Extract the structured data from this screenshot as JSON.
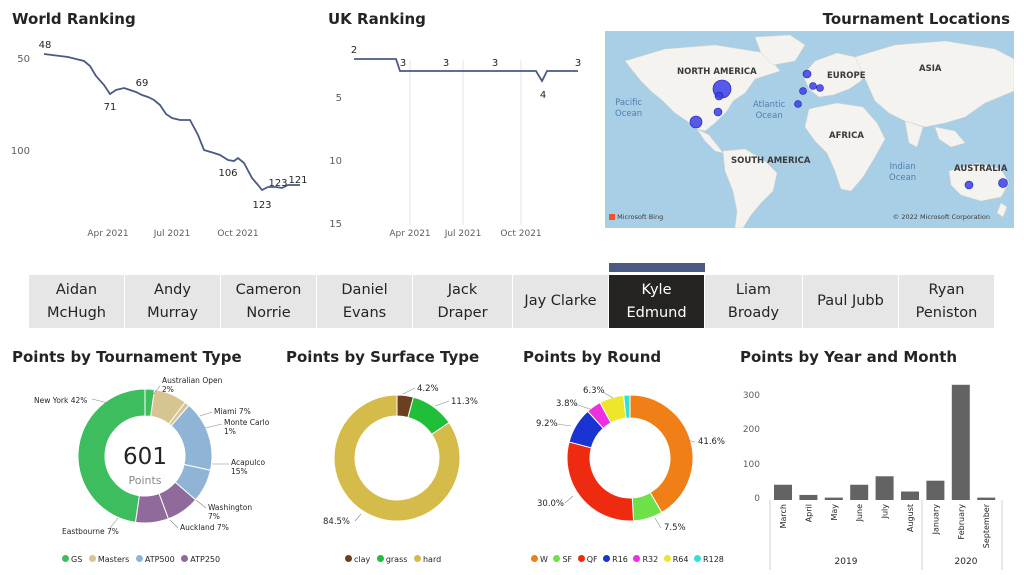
{
  "world_ranking": {
    "title": "World Ranking",
    "y_ticks": [
      "50",
      "100"
    ],
    "x_ticks": [
      "Apr 2021",
      "Jul 2021",
      "Oct 2021"
    ],
    "labels": [
      "48",
      "71",
      "69",
      "106",
      "123",
      "123",
      "121"
    ]
  },
  "uk_ranking": {
    "title": "UK Ranking",
    "y_ticks": [
      "5",
      "10",
      "15"
    ],
    "x_ticks": [
      "Apr 2021",
      "Jul 2021",
      "Oct 2021"
    ],
    "labels": [
      "2",
      "3",
      "3",
      "3",
      "4",
      "3"
    ]
  },
  "map": {
    "title": "Tournament Locations",
    "continents": [
      "NORTH AMERICA",
      "EUROPE",
      "ASIA",
      "AFRICA",
      "SOUTH AMERICA",
      "AUSTRALIA"
    ],
    "oceans": [
      "Pacific\nOcean",
      "Atlantic\nOcean",
      "Indian\nOcean"
    ],
    "bing": "Microsoft Bing",
    "copyright": "© 2022 Microsoft Corporation"
  },
  "players": {
    "items": [
      {
        "line1": "Aidan",
        "line2": "McHugh"
      },
      {
        "line1": "Andy",
        "line2": "Murray"
      },
      {
        "line1": "Cameron",
        "line2": "Norrie"
      },
      {
        "line1": "Daniel",
        "line2": "Evans"
      },
      {
        "line1": "Jack",
        "line2": "Draper"
      },
      {
        "line1": "Jay Clarke",
        "line2": ""
      },
      {
        "line1": "Kyle",
        "line2": "Edmund"
      },
      {
        "line1": "Liam",
        "line2": "Broady"
      },
      {
        "line1": "Paul Jubb",
        "line2": ""
      },
      {
        "line1": "Ryan",
        "line2": "Peniston"
      }
    ],
    "selected_index": 6
  },
  "tournament_type": {
    "title": "Points by Tournament Type",
    "center_value": "601",
    "center_label": "Points",
    "slice_labels": [
      {
        "name": "New York 42%"
      },
      {
        "name": "Australian Open",
        "value": "2%"
      },
      {
        "name": "Miami 7%"
      },
      {
        "name": "Monte Carlo",
        "value": "1%"
      },
      {
        "name": "Acapulco",
        "value": "15%"
      },
      {
        "name": "Washington",
        "value": "7%"
      },
      {
        "name": "Auckland 7%"
      },
      {
        "name": "Eastbourne 7%"
      }
    ],
    "legend": [
      {
        "label": "GS",
        "color": "#3ebd5f"
      },
      {
        "label": "Masters",
        "color": "#d6c491"
      },
      {
        "label": "ATP500",
        "color": "#90b4d6"
      },
      {
        "label": "ATP250",
        "color": "#8f6a9a"
      }
    ]
  },
  "surface_type": {
    "title": "Points by Surface Type",
    "labels": [
      "4.2%",
      "11.3%",
      "84.5%"
    ],
    "legend": [
      {
        "label": "clay",
        "color": "#6b3f1f"
      },
      {
        "label": "grass",
        "color": "#1fbf3a"
      },
      {
        "label": "hard",
        "color": "#d4bb4a"
      }
    ]
  },
  "round": {
    "title": "Points by Round",
    "labels": [
      "6.3%",
      "3.8%",
      "9.2%",
      "41.6%",
      "30.0%",
      "7.5%"
    ],
    "legend": [
      {
        "label": "W",
        "color": "#f07f17"
      },
      {
        "label": "SF",
        "color": "#6ee04a"
      },
      {
        "label": "QF",
        "color": "#ee2a10"
      },
      {
        "label": "R16",
        "color": "#1a34d4"
      },
      {
        "label": "R32",
        "color": "#ee2fe0"
      },
      {
        "label": "R64",
        "color": "#eee62a"
      },
      {
        "label": "R128",
        "color": "#2ee2d8"
      }
    ]
  },
  "year_month": {
    "title": "Points by Year and Month",
    "y_ticks": [
      "0",
      "100",
      "200",
      "300"
    ],
    "years": [
      "2019",
      "2020"
    ]
  },
  "chart_data": [
    {
      "type": "line",
      "title": "World Ranking",
      "x_ticks": [
        "Apr 2021",
        "Jul 2021",
        "Oct 2021"
      ],
      "y_ticks": [
        50,
        100
      ],
      "y_reversed": true,
      "grid": false,
      "point_labels": [
        48,
        71,
        69,
        106,
        123,
        123,
        121
      ]
    },
    {
      "type": "line",
      "title": "UK Ranking",
      "x_ticks": [
        "Apr 2021",
        "Jul 2021",
        "Oct 2021"
      ],
      "ylim": [
        15,
        1
      ],
      "y_reversed": true,
      "grid": true,
      "point_labels": [
        2,
        3,
        3,
        3,
        4,
        3
      ]
    },
    {
      "type": "pie",
      "title": "Points by Tournament Type",
      "total": 601,
      "slices": [
        {
          "label": "Australian Open",
          "group": "GS",
          "value": 2
        },
        {
          "label": "Miami",
          "group": "Masters",
          "value": 7
        },
        {
          "label": "Monte Carlo",
          "group": "Masters",
          "value": 1
        },
        {
          "label": "Acapulco",
          "group": "ATP500",
          "value": 15
        },
        {
          "label": "Washington",
          "group": "ATP500",
          "value": 7
        },
        {
          "label": "Auckland",
          "group": "ATP250",
          "value": 7
        },
        {
          "label": "Eastbourne",
          "group": "ATP250",
          "value": 7
        },
        {
          "label": "New York",
          "group": "GS",
          "value": 42
        }
      ]
    },
    {
      "type": "pie",
      "title": "Points by Surface Type",
      "slices": [
        {
          "label": "clay",
          "value": 4.2
        },
        {
          "label": "grass",
          "value": 11.3
        },
        {
          "label": "hard",
          "value": 84.5
        }
      ]
    },
    {
      "type": "pie",
      "title": "Points by Round",
      "slices": [
        {
          "label": "W",
          "value": 41.6
        },
        {
          "label": "SF",
          "value": 7.5
        },
        {
          "label": "QF",
          "value": 30.0
        },
        {
          "label": "R16",
          "value": 9.2
        },
        {
          "label": "R32",
          "value": 3.8
        },
        {
          "label": "R64",
          "value": 6.3
        },
        {
          "label": "R128",
          "value": 1.6
        }
      ]
    },
    {
      "type": "bar",
      "title": "Points by Year and Month",
      "categories": [
        "March",
        "April",
        "May",
        "June",
        "July",
        "August",
        "January",
        "February",
        "September"
      ],
      "years": [
        "2019",
        "2019",
        "2019",
        "2019",
        "2019",
        "2019",
        "2020",
        "2020",
        "2020"
      ],
      "values": [
        45,
        15,
        7,
        45,
        70,
        25,
        57,
        340,
        7
      ],
      "ylim": [
        0,
        360
      ],
      "y_ticks": [
        0,
        100,
        200,
        300
      ],
      "color": "#636363"
    }
  ]
}
